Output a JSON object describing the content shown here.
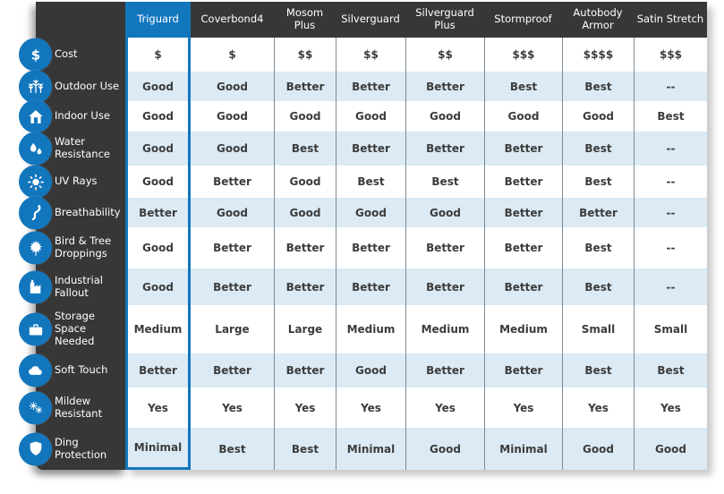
{
  "table": {
    "columns": [
      {
        "label": "Triguard",
        "selected": true
      },
      {
        "label": "Coverbond4",
        "selected": false
      },
      {
        "label": "Mosom Plus",
        "selected": false
      },
      {
        "label": "Silverguard",
        "selected": false
      },
      {
        "label": "Silverguard Plus",
        "selected": false
      },
      {
        "label": "Stormproof",
        "selected": false
      },
      {
        "label": "Autobody Armor",
        "selected": false
      },
      {
        "label": "Satin Stretch",
        "selected": false
      }
    ],
    "rows": [
      {
        "label": "Cost",
        "icon": "dollar-icon",
        "values": [
          "$",
          "$",
          "$$",
          "$$",
          "$$",
          "$$$",
          "$$$$",
          "$$$"
        ]
      },
      {
        "label": "Outdoor Use",
        "icon": "trees-icon",
        "values": [
          "Good",
          "Good",
          "Better",
          "Better",
          "Better",
          "Best",
          "Best",
          "--"
        ]
      },
      {
        "label": "Indoor Use",
        "icon": "house-icon",
        "values": [
          "Good",
          "Good",
          "Good",
          "Good",
          "Good",
          "Good",
          "Good",
          "Best"
        ]
      },
      {
        "label": "Water Resistance",
        "icon": "water-drops-icon",
        "values": [
          "Good",
          "Good",
          "Best",
          "Better",
          "Better",
          "Better",
          "Best",
          "--"
        ]
      },
      {
        "label": "UV Rays",
        "icon": "sun-icon",
        "values": [
          "Good",
          "Better",
          "Good",
          "Best",
          "Best",
          "Better",
          "Best",
          "--"
        ]
      },
      {
        "label": "Breathability",
        "icon": "airflow-icon",
        "values": [
          "Better",
          "Good",
          "Good",
          "Good",
          "Good",
          "Better",
          "Better",
          "--"
        ]
      },
      {
        "label": "Bird & Tree Droppings",
        "icon": "maple-leaf-icon",
        "values": [
          "Good",
          "Better",
          "Better",
          "Better",
          "Better",
          "Better",
          "Best",
          "--"
        ]
      },
      {
        "label": "Industrial Fallout",
        "icon": "factory-icon",
        "values": [
          "Good",
          "Better",
          "Better",
          "Better",
          "Better",
          "Better",
          "Best",
          "--"
        ]
      },
      {
        "label": "Storage Space Needed",
        "icon": "suitcase-icon",
        "values": [
          "Medium",
          "Large",
          "Large",
          "Medium",
          "Medium",
          "Medium",
          "Small",
          "Small"
        ]
      },
      {
        "label": "Soft Touch",
        "icon": "cloud-icon",
        "values": [
          "Better",
          "Better",
          "Better",
          "Good",
          "Better",
          "Better",
          "Best",
          "Best"
        ]
      },
      {
        "label": "Mildew Resistant",
        "icon": "spores-icon",
        "values": [
          "Yes",
          "Yes",
          "Yes",
          "Yes",
          "Yes",
          "Yes",
          "Yes",
          "Yes"
        ]
      },
      {
        "label": "Ding Protection",
        "icon": "shield-icon",
        "values": [
          "Minimal",
          "Best",
          "Best",
          "Minimal",
          "Good",
          "Minimal",
          "Good",
          "Good"
        ]
      }
    ]
  },
  "colors": {
    "accent_blue": "#1276bd",
    "header_dark": "#373737",
    "row_alt_blue": "#dbeaf4",
    "row_white": "#ffffff",
    "divider_gray": "#7d8a94",
    "cell_text": "#3c3c3c",
    "header_text": "#ffffff"
  }
}
